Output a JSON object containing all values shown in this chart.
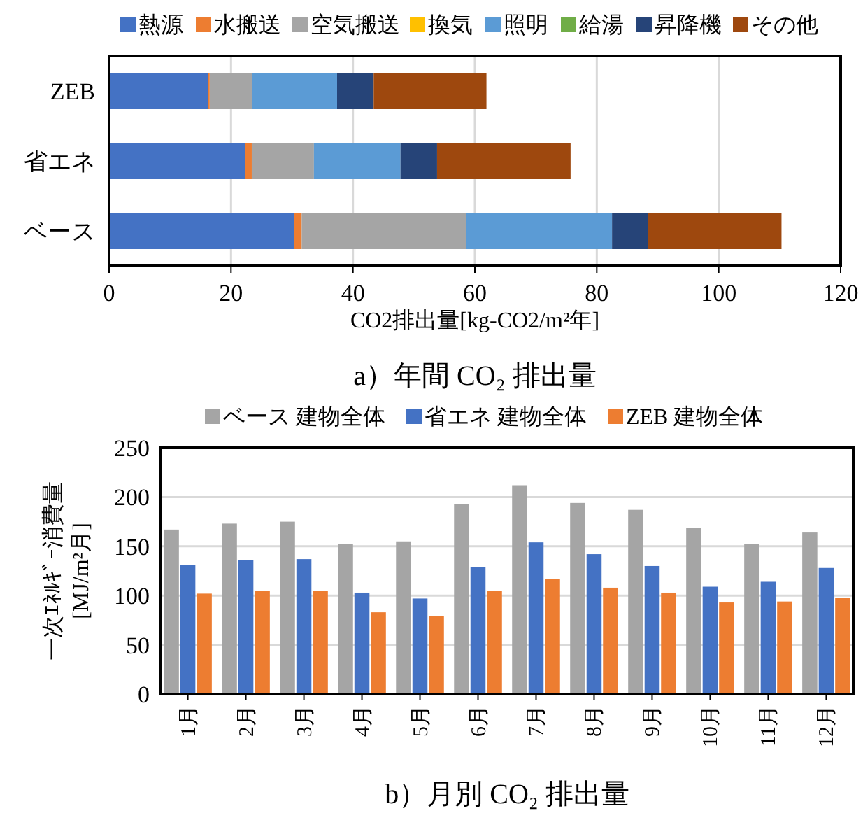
{
  "chart_data": [
    {
      "type": "bar",
      "orientation": "horizontal",
      "stacked": true,
      "title": "a）年間 CO₂ 排出量",
      "xlabel": "CO2排出量[kg-CO2/m²年]",
      "categories": [
        "ZEB",
        "省エネ",
        "ベース"
      ],
      "xlim": [
        0,
        120
      ],
      "xticks": [
        0,
        20,
        40,
        60,
        80,
        100,
        120
      ],
      "grid": "x",
      "legend": "top",
      "series": [
        {
          "name": "熱源",
          "color": "#4472c4",
          "values": [
            16.2,
            22.3,
            30.4
          ]
        },
        {
          "name": "水搬送",
          "color": "#ed7d31",
          "values": [
            0.3,
            1.1,
            1.2
          ]
        },
        {
          "name": "空気搬送",
          "color": "#a5a5a5",
          "values": [
            7.0,
            10.2,
            27.0
          ]
        },
        {
          "name": "換気",
          "color": "#ffc000",
          "values": [
            0,
            0,
            0
          ]
        },
        {
          "name": "照明",
          "color": "#5b9bd5",
          "values": [
            13.9,
            14.2,
            23.9
          ]
        },
        {
          "name": "給湯",
          "color": "#70ad47",
          "values": [
            0,
            0,
            0
          ]
        },
        {
          "name": "昇降機",
          "color": "#264478",
          "values": [
            6.0,
            6.0,
            5.9
          ]
        },
        {
          "name": "その他",
          "color": "#9e480e",
          "values": [
            18.5,
            21.9,
            21.9
          ]
        }
      ]
    },
    {
      "type": "bar",
      "title": "b）月別 CO₂ 排出量",
      "ylabel": "一次ｴﾈﾙｷﾞｰ消費量\n[MJ/m²月]",
      "categories": [
        "1月",
        "2月",
        "3月",
        "4月",
        "5月",
        "6月",
        "7月",
        "8月",
        "9月",
        "10月",
        "11月",
        "12月"
      ],
      "ylim": [
        0,
        250
      ],
      "yticks": [
        0,
        50,
        100,
        150,
        200,
        250
      ],
      "grid": "y",
      "legend": "top",
      "series": [
        {
          "name": "ベース 建物全体",
          "color": "#a5a5a5",
          "values": [
            167,
            173,
            175,
            152,
            155,
            193,
            212,
            194,
            187,
            169,
            152,
            164
          ]
        },
        {
          "name": "省エネ 建物全体",
          "color": "#4472c4",
          "values": [
            131,
            136,
            137,
            103,
            97,
            129,
            154,
            142,
            130,
            109,
            114,
            128
          ]
        },
        {
          "name": "ZEB 建物全体",
          "color": "#ed7d31",
          "values": [
            102,
            105,
            105,
            83,
            79,
            105,
            117,
            108,
            103,
            93,
            94,
            98
          ]
        }
      ]
    }
  ]
}
